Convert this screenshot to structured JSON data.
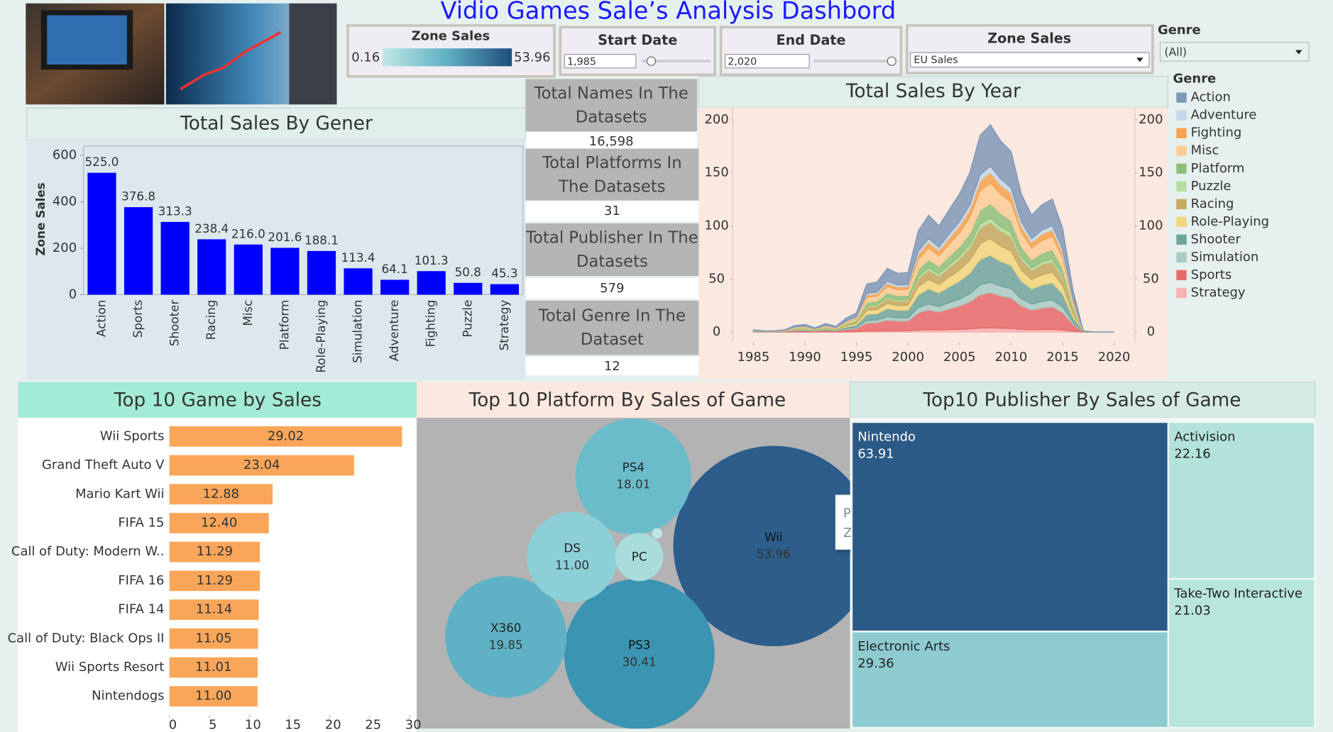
{
  "header": {
    "title": "Vidio Games Sale’s Analysis Dashbord"
  },
  "filters": {
    "zone_sales_legend": {
      "label": "Zone Sales",
      "min": 0.16,
      "max": 53.96
    },
    "start_date": {
      "label": "Start Date",
      "value": "1,985"
    },
    "end_date": {
      "label": "End Date",
      "value": "2,020"
    },
    "zone_sales": {
      "label": "Zone Sales",
      "value": "EU Sales"
    },
    "genre": {
      "label": "Genre",
      "value": "(All)"
    }
  },
  "kpis": [
    {
      "label": "Total Names In The Datasets",
      "value": "16,598"
    },
    {
      "label": "Total Platforms In The Datasets",
      "value": "31"
    },
    {
      "label": "Total Publisher In The Datasets",
      "value": "579"
    },
    {
      "label": "Total Genre In The Dataset",
      "value": "12"
    }
  ],
  "chart_data": [
    {
      "type": "bar",
      "title": "Total Sales By Gener",
      "y_label": "Zone Sales",
      "categories": [
        "Action",
        "Sports",
        "Shooter",
        "Racing",
        "Misc",
        "Platform",
        "Role-Playing",
        "Simulation",
        "Adventure",
        "Fighting",
        "Puzzle",
        "Strategy"
      ],
      "values": [
        525,
        376.8,
        313.3,
        238.4,
        216,
        201.6,
        188.1,
        113.4,
        64.1,
        101.3,
        50.8,
        45.3
      ],
      "value_labels": [
        "525.0",
        "376.8",
        "313.3",
        "238.4",
        "216.0",
        "201.6",
        "188.1",
        "113.4",
        "64.1",
        "101.3",
        "50.8",
        "45.3"
      ],
      "color": "#0000ff",
      "ylim": [
        0,
        640
      ],
      "yticks": [
        0,
        200,
        400,
        600
      ]
    },
    {
      "type": "area",
      "title": "Total Sales By Year",
      "legend_title": "Genre",
      "stacked": true,
      "x": [
        1985,
        1986,
        1987,
        1988,
        1989,
        1990,
        1991,
        1992,
        1993,
        1994,
        1995,
        1996,
        1997,
        1998,
        1999,
        2000,
        2001,
        2002,
        2003,
        2004,
        2005,
        2006,
        2007,
        2008,
        2009,
        2010,
        2011,
        2012,
        2013,
        2014,
        2015,
        2016,
        2017,
        2018,
        2019,
        2020
      ],
      "series": [
        {
          "name": "Action",
          "color": "#7f98b7",
          "values": [
            0.4,
            0.2,
            0.2,
            0.4,
            1.2,
            1.4,
            0.8,
            1.6,
            1,
            2.6,
            3.6,
            9,
            9.4,
            12,
            11,
            11.2,
            19,
            22,
            20,
            23,
            26,
            30,
            37,
            39,
            36,
            34,
            26,
            22,
            24,
            25,
            19.6,
            8,
            0.2,
            0,
            0,
            0
          ]
        },
        {
          "name": "Adventure",
          "color": "#c3d8ea",
          "values": [
            0.1,
            0,
            0,
            0.1,
            0.2,
            0.2,
            0.1,
            0.2,
            0.2,
            0.4,
            0.5,
            1.4,
            1.4,
            1.8,
            1.7,
            1.7,
            2.9,
            3.3,
            3,
            3.5,
            3.9,
            4.5,
            5.6,
            5.9,
            5.4,
            5.1,
            3.9,
            3.3,
            3.6,
            3.8,
            2.9,
            1.2,
            0,
            0,
            0,
            0
          ]
        },
        {
          "name": "Fighting",
          "color": "#f5a34f",
          "values": [
            0.1,
            0.1,
            0.1,
            0.1,
            0.3,
            0.4,
            0.2,
            0.4,
            0.3,
            0.7,
            0.9,
            2.3,
            2.4,
            3,
            2.8,
            2.8,
            4.8,
            5.5,
            5,
            5.8,
            6.5,
            7.5,
            9.3,
            9.8,
            9,
            8.5,
            6.5,
            5.5,
            6,
            6.3,
            4.9,
            2,
            0.1,
            0,
            0,
            0
          ]
        },
        {
          "name": "Misc",
          "color": "#fdcc96",
          "values": [
            0.2,
            0.1,
            0.1,
            0.2,
            0.6,
            0.7,
            0.4,
            0.8,
            0.5,
            1.3,
            1.8,
            4.5,
            4.7,
            6,
            5.5,
            5.6,
            9.5,
            11,
            10,
            11.5,
            13,
            15,
            18.5,
            19.5,
            18,
            17,
            13,
            11,
            12,
            12.5,
            9.8,
            4,
            0.1,
            0,
            0,
            0
          ]
        },
        {
          "name": "Platform",
          "color": "#8dbf7b",
          "values": [
            0.1,
            0.1,
            0.1,
            0.1,
            0.4,
            0.5,
            0.3,
            0.6,
            0.4,
            0.9,
            1.3,
            3.2,
            3.3,
            4.2,
            3.9,
            3.9,
            6.7,
            7.7,
            7,
            8.1,
            9.1,
            10.5,
            13,
            13.7,
            12.6,
            11.9,
            9.1,
            7.7,
            8.4,
            8.8,
            6.9,
            2.8,
            0.1,
            0,
            0,
            0
          ]
        },
        {
          "name": "Puzzle",
          "color": "#b6dea2",
          "values": [
            0,
            0,
            0,
            0,
            0.1,
            0.1,
            0.1,
            0.2,
            0.1,
            0.3,
            0.4,
            0.9,
            0.9,
            1.2,
            1.1,
            1.1,
            1.9,
            2.2,
            2,
            2.3,
            2.6,
            3,
            3.7,
            3.9,
            3.6,
            3.4,
            2.6,
            2.2,
            2.4,
            2.5,
            2,
            0.8,
            0,
            0,
            0,
            0
          ]
        },
        {
          "name": "Racing",
          "color": "#c4a95f",
          "values": [
            0.2,
            0.1,
            0.1,
            0.2,
            0.5,
            0.6,
            0.3,
            0.6,
            0.4,
            1,
            1.4,
            3.6,
            3.8,
            4.8,
            4.4,
            4.5,
            7.6,
            8.8,
            8,
            9.2,
            10.4,
            12,
            14.8,
            15.6,
            14.4,
            13.6,
            10.4,
            8.8,
            9.6,
            10,
            7.8,
            3.2,
            0.1,
            0,
            0,
            0
          ]
        },
        {
          "name": "Role-Playing",
          "color": "#f1d67c",
          "values": [
            0.2,
            0.1,
            0.1,
            0.2,
            0.5,
            0.6,
            0.3,
            0.6,
            0.4,
            1,
            1.4,
            3.6,
            3.8,
            4.8,
            4.4,
            4.5,
            7.6,
            8.8,
            8,
            9.2,
            10.4,
            12,
            14.8,
            15.6,
            14.4,
            13.6,
            10.4,
            8.8,
            9.6,
            10,
            7.8,
            3.2,
            0.1,
            0,
            0,
            0
          ]
        },
        {
          "name": "Shooter",
          "color": "#6fa49e",
          "values": [
            0.3,
            0.1,
            0.1,
            0.3,
            0.8,
            0.9,
            0.5,
            1,
            0.7,
            1.7,
            2.3,
            5.9,
            6.1,
            7.8,
            7.2,
            7.3,
            12.4,
            14.3,
            13,
            15,
            16.9,
            19.5,
            24.1,
            25.4,
            23.4,
            22.1,
            16.9,
            14.3,
            15.6,
            16.3,
            12.7,
            5.2,
            0.1,
            0,
            0,
            0
          ]
        },
        {
          "name": "Simulation",
          "color": "#a8cbc4",
          "values": [
            0.1,
            0.1,
            0.1,
            0.1,
            0.3,
            0.4,
            0.2,
            0.4,
            0.3,
            0.7,
            0.9,
            2.3,
            2.4,
            3,
            2.8,
            2.8,
            4.8,
            5.5,
            5,
            5.8,
            6.5,
            7.5,
            9.3,
            9.8,
            9,
            8.5,
            6.5,
            5.5,
            6,
            6.3,
            4.9,
            2,
            0.1,
            0,
            0,
            0
          ]
        },
        {
          "name": "Sports",
          "color": "#e8696b",
          "values": [
            0.3,
            0.2,
            0.2,
            0.3,
            1,
            1.2,
            0.7,
            1.4,
            0.9,
            2.2,
            3.1,
            7.7,
            8,
            10.2,
            9.4,
            9.5,
            16.2,
            18.7,
            17,
            19.6,
            22.1,
            25.5,
            31.5,
            33.2,
            30.6,
            28.9,
            22.1,
            18.7,
            20.4,
            21.3,
            16.7,
            6.8,
            0.2,
            0,
            0,
            0
          ]
        },
        {
          "name": "Strategy",
          "color": "#f7b2b1",
          "values": [
            0,
            0,
            0,
            0,
            0.1,
            0.1,
            0.1,
            0.2,
            0.1,
            0.3,
            0.4,
            0.9,
            0.9,
            1.2,
            1.1,
            1.1,
            1.9,
            2.2,
            2,
            2.3,
            2.6,
            3,
            3.7,
            3.9,
            3.6,
            3.4,
            2.6,
            2.2,
            2.4,
            2.5,
            2,
            0.8,
            0,
            0,
            0,
            0
          ]
        }
      ],
      "xlim": [
        1983,
        2022
      ],
      "xticks": [
        1985,
        1990,
        1995,
        2000,
        2005,
        2010,
        2015,
        2020
      ],
      "ylim": [
        0,
        208
      ],
      "yticks": [
        0,
        50,
        100,
        150,
        200
      ],
      "y2lim": [
        0,
        208
      ],
      "y2ticks": [
        0,
        50,
        100,
        150,
        200
      ]
    },
    {
      "type": "hbar",
      "title": "Top 10 Game by Sales",
      "categories": [
        "Wii Sports",
        "Grand Theft Auto V",
        "Mario Kart Wii",
        "FIFA 15",
        "Call of Duty: Modern W..",
        "FIFA 16",
        "FIFA 14",
        "Call of Duty: Black Ops II",
        "Wii Sports Resort",
        "Nintendogs"
      ],
      "values": [
        29.02,
        23.04,
        12.88,
        12.4,
        11.29,
        11.29,
        11.14,
        11.05,
        11.01,
        11
      ],
      "value_labels": [
        "29.02",
        "23.04",
        "12.88",
        "12.40",
        "11.29",
        "11.29",
        "11.14",
        "11.05",
        "11.01",
        "11.00"
      ],
      "color": "#f9a65a",
      "xlim": [
        0,
        30
      ],
      "xticks": [
        0,
        5,
        10,
        15,
        20,
        25,
        30
      ]
    },
    {
      "type": "bubble",
      "title": "Top 10 Platform By  Sales of Game",
      "categories": [
        "Wii",
        "PS3",
        "X360",
        "PS4",
        "DS",
        "PC",
        null
      ],
      "values": [
        53.96,
        30.41,
        19.85,
        18.01,
        11,
        3.1,
        0.14
      ],
      "value_labels": [
        "53.96",
        "30.41",
        "19.85",
        "18.01",
        "11.00",
        null,
        null
      ],
      "colors": [
        "#2c5d8b",
        "#3b94b1",
        "#5fb2c5",
        "#6bbccb",
        "#8dcfd6",
        "#aadcdc",
        "#bfe6e6"
      ],
      "tooltip": {
        "platform_label": "Platform:",
        "sales_label": "Zone Sales:"
      }
    },
    {
      "type": "treemap",
      "title": "Top10 Publisher By  Sales of Game",
      "categories": [
        "Nintendo",
        "Electronic Arts",
        "Activision",
        "Take-Two Interactive"
      ],
      "values": [
        63.91,
        29.36,
        22.16,
        21.03
      ],
      "colors": [
        "#2c5a86",
        "#8ecbd0",
        "#b3e3da",
        "#b8e6dc"
      ]
    }
  ]
}
